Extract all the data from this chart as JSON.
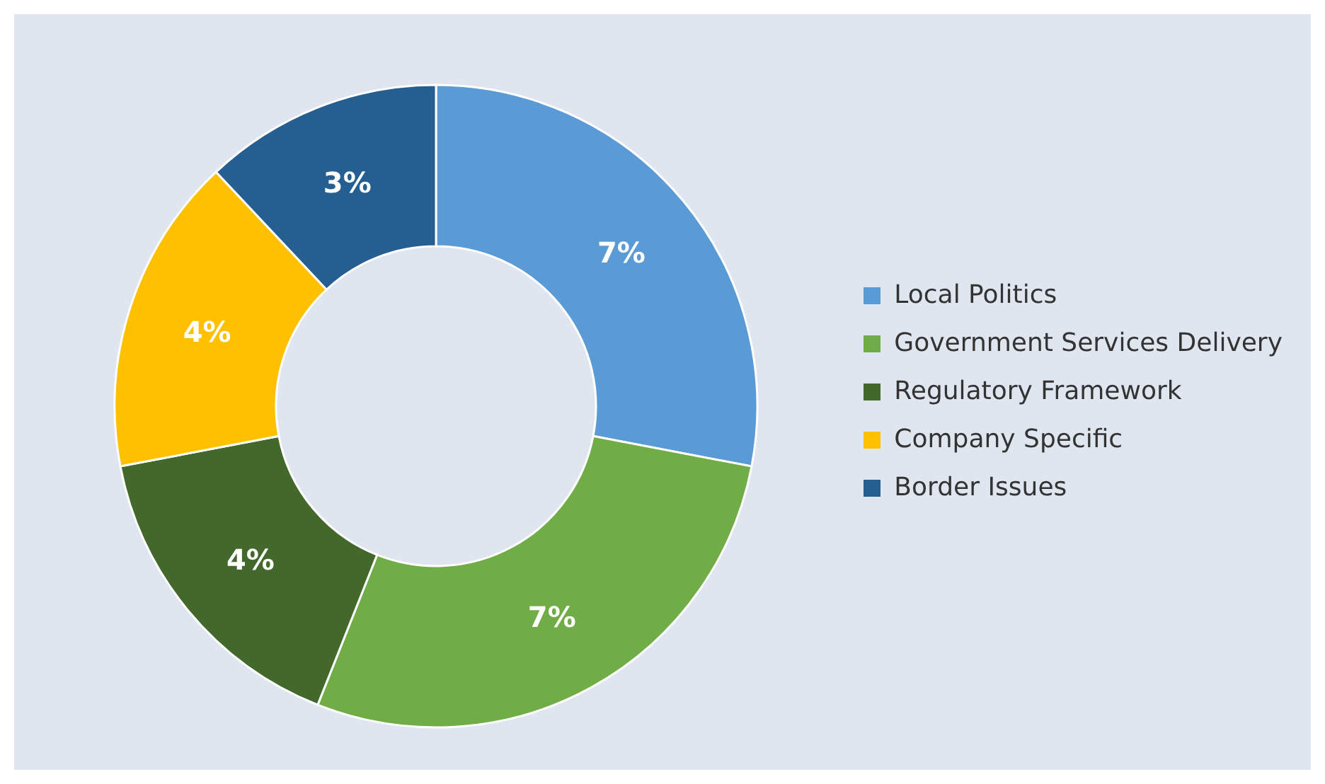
{
  "chart_data": {
    "type": "donut",
    "categories": [
      "Local Politics",
      "Government Services Delivery",
      "Regulatory Framework",
      "Company Specific",
      "Border Issues"
    ],
    "values": [
      7,
      7,
      4,
      4,
      3
    ],
    "colors": [
      "#5b9bd5",
      "#70ad47",
      "#43682b",
      "#ffc000",
      "#255e91"
    ],
    "value_labels": [
      "7%",
      "7%",
      "4%",
      "4%",
      "3%"
    ],
    "legend": "right"
  }
}
